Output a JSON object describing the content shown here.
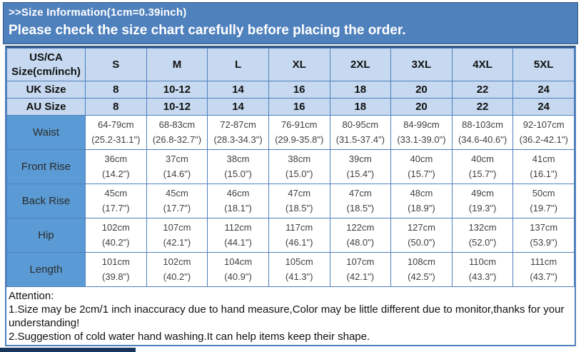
{
  "banner": {
    "title": ">>Size Information(1cm=0.39inch)",
    "subtitle": "Please check the size chart carefully before placing the order."
  },
  "table": {
    "corner": {
      "line1": "US/CA",
      "line2": "Size(cm/inch)"
    },
    "size_headers": [
      "S",
      "M",
      "L",
      "XL",
      "2XL",
      "3XL",
      "4XL",
      "5XL"
    ],
    "uk": {
      "label": "UK Size",
      "values": [
        "8",
        "10-12",
        "14",
        "16",
        "18",
        "20",
        "22",
        "24"
      ]
    },
    "au": {
      "label": "AU Size",
      "values": [
        "8",
        "10-12",
        "14",
        "16",
        "18",
        "20",
        "22",
        "24"
      ]
    },
    "rows": [
      {
        "label": "Waist",
        "cm": [
          "64-79cm",
          "68-83cm",
          "72-87cm",
          "76-91cm",
          "80-95cm",
          "84-99cm",
          "88-103cm",
          "92-107cm"
        ],
        "in": [
          "(25.2-31.1\")",
          "(26.8-32.7\")",
          "(28.3-34.3\")",
          "(29.9-35.8\")",
          "(31.5-37.4\")",
          "(33.1-39.0\")",
          "(34.6-40.6\")",
          "(36.2-42.1\")"
        ]
      },
      {
        "label": "Front Rise",
        "cm": [
          "36cm",
          "37cm",
          "38cm",
          "38cm",
          "39cm",
          "40cm",
          "40cm",
          "41cm"
        ],
        "in": [
          "(14.2\")",
          "(14.6\")",
          "(15.0\")",
          "(15.0\")",
          "(15.4\")",
          "(15.7\")",
          "(15.7\")",
          "(16.1\")"
        ]
      },
      {
        "label": "Back Rise",
        "cm": [
          "45cm",
          "45cm",
          "46cm",
          "47cm",
          "47cm",
          "48cm",
          "49cm",
          "50cm"
        ],
        "in": [
          "(17.7\")",
          "(17.7\")",
          "(18.1\")",
          "(18.5\")",
          "(18.5\")",
          "(18.9\")",
          "(19.3\")",
          "(19.7\")"
        ]
      },
      {
        "label": "Hip",
        "cm": [
          "102cm",
          "107cm",
          "112cm",
          "117cm",
          "122cm",
          "127cm",
          "132cm",
          "137cm"
        ],
        "in": [
          "(40.2\")",
          "(42.1\")",
          "(44.1\")",
          "(46.1\")",
          "(48.0\")",
          "(50.0\")",
          "(52.0\")",
          "(53.9\")"
        ]
      },
      {
        "label": "Length",
        "cm": [
          "101cm",
          "102cm",
          "104cm",
          "105cm",
          "107cm",
          "108cm",
          "110cm",
          "111cm"
        ],
        "in": [
          "(39.8\")",
          "(40.2\")",
          "(40.9\")",
          "(41.3\")",
          "(42.1\")",
          "(42.5\")",
          "(43.3\")",
          "(43.7\")"
        ]
      }
    ]
  },
  "attention": {
    "title": "Attention:",
    "note1": "1.Size may be 2cm/1 inch inaccuracy due to hand measure,Color may be little different due to monitor,thanks for your understanding!",
    "note2": "2.Suggestion of cold water hand washing.It can help items keep their shape."
  },
  "colors": {
    "banner_blue": "#4F81BD",
    "header_light_blue": "#C6D9F0",
    "row_label_blue": "#5B9BD5",
    "border_blue": "#4F81BD",
    "bottom_bar_navy": "#17375E",
    "banner_text": "#FFFFFF"
  }
}
